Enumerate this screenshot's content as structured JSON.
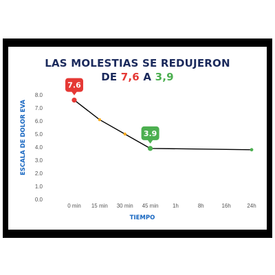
{
  "chart_data": {
    "type": "line",
    "title": {
      "line1": "LAS MOLESTIAS SE REDUJERON",
      "line2_prefix": "DE ",
      "start_value_text": "7,6",
      "connector": " A ",
      "end_value_text": "3,9"
    },
    "xlabel": "TIEMPO",
    "ylabel": "ESCALA DE DOLOR EVA",
    "categories": [
      "0 min",
      "15 min",
      "30 min",
      "45 min",
      "1h",
      "8h",
      "16h",
      "24h"
    ],
    "y_ticks": [
      "8.0",
      "7.0",
      "6.0",
      "5.0",
      "4.0",
      "3.0",
      "2.0",
      "1.0",
      "0.0"
    ],
    "ylim": [
      0,
      8
    ],
    "grid": false,
    "series": [
      {
        "points": [
          {
            "x": "0 min",
            "y": 7.6
          },
          {
            "x": "15 min",
            "y": 6.1
          },
          {
            "x": "30 min",
            "y": 5.0
          },
          {
            "x": "45 min",
            "y": 3.9
          },
          {
            "x": "24h",
            "y": 3.8
          }
        ]
      }
    ],
    "callouts": [
      {
        "x": "0 min",
        "y": 7.6,
        "text": "7.6",
        "color": "#e53935"
      },
      {
        "x": "45 min",
        "y": 3.9,
        "text": "3.9",
        "color": "#4caf50"
      }
    ],
    "colors": {
      "title": "#1b2a5c",
      "start_value": "#e53935",
      "end_value": "#4caf50",
      "axis_title": "#1565c0",
      "line": "#000000",
      "mid_marker": "#f4a71d",
      "end_marker": "#4caf50",
      "frame": "#000000"
    }
  }
}
